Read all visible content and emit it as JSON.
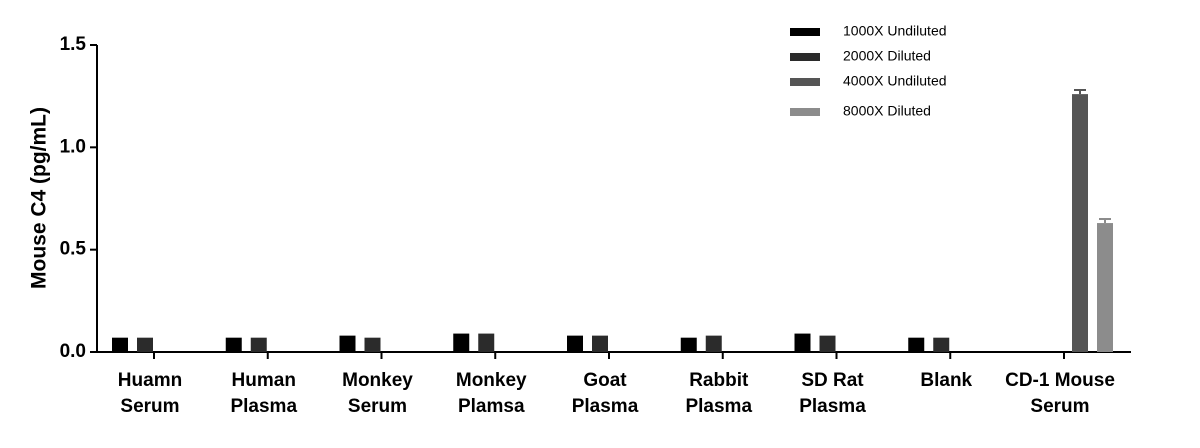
{
  "chart_data": {
    "type": "bar",
    "y_label": "Mouse C4 (pg/mL)",
    "categories": [
      [
        "Huamn",
        "Serum"
      ],
      [
        "Human",
        "Plasma"
      ],
      [
        "Monkey",
        "Serum"
      ],
      [
        "Monkey",
        "Plamsa"
      ],
      [
        "Goat",
        "Plasma"
      ],
      [
        "Rabbit",
        "Plasma"
      ],
      [
        "SD Rat",
        "Plasma"
      ],
      [
        "Blank"
      ],
      [
        "CD-1 Mouse",
        "Serum"
      ]
    ],
    "series": [
      {
        "name": "1000X Undiluted",
        "color": "#000000",
        "values": [
          0.07,
          0.07,
          0.08,
          0.09,
          0.08,
          0.07,
          0.09,
          0.07,
          null
        ]
      },
      {
        "name": "2000X Diluted",
        "color": "#2b2b2b",
        "values": [
          0.07,
          0.07,
          0.07,
          0.09,
          0.08,
          0.08,
          0.08,
          0.07,
          null
        ]
      },
      {
        "name": "4000X Undiluted",
        "color": "#555555",
        "values": [
          null,
          null,
          null,
          null,
          null,
          null,
          null,
          null,
          1.26
        ],
        "errors": [
          null,
          null,
          null,
          null,
          null,
          null,
          null,
          null,
          0.02
        ]
      },
      {
        "name": "8000X Diluted",
        "color": "#8c8c8c",
        "values": [
          null,
          null,
          null,
          null,
          null,
          null,
          null,
          null,
          0.63
        ],
        "errors": [
          null,
          null,
          null,
          null,
          null,
          null,
          null,
          null,
          0.02
        ]
      }
    ],
    "ylim": [
      0,
      1.5
    ],
    "yticks": [
      {
        "value": 0,
        "label": "0.0"
      },
      {
        "value": 0.5,
        "label": "0.5"
      },
      {
        "value": 1,
        "label": "1.0"
      },
      {
        "value": 1.5,
        "label": "1.5"
      }
    ]
  }
}
